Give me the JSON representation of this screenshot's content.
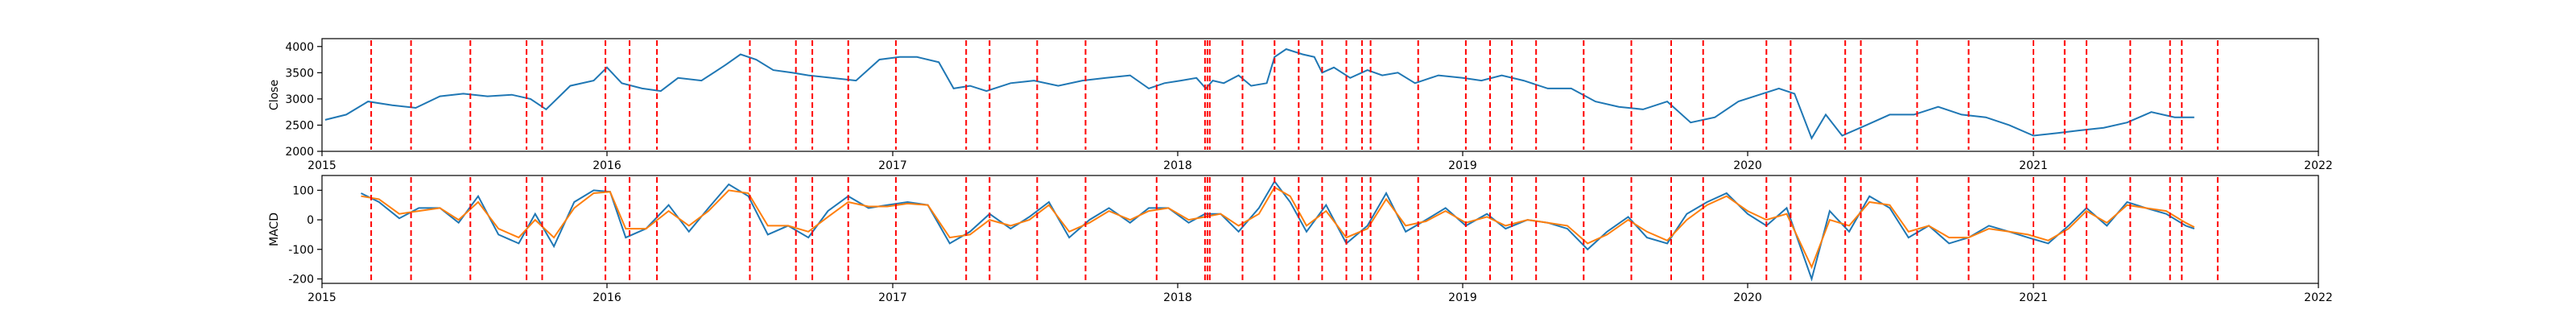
{
  "chart_data": [
    {
      "type": "line",
      "ylabel": "Close",
      "x_range": [
        "2015-01-01",
        "2022-01-01"
      ],
      "xticks": [
        "2015",
        "2016",
        "2017",
        "2018",
        "2019",
        "2020",
        "2021",
        "2022"
      ],
      "ylim": [
        2000,
        4150
      ],
      "yticks": [
        2000,
        2500,
        3000,
        3500,
        4000
      ],
      "grid": false,
      "series": [
        {
          "color": "#1f77b4",
          "dates": [
            "2015-01-05",
            "2015-02-01",
            "2015-03-01",
            "2015-04-01",
            "2015-05-01",
            "2015-06-01",
            "2015-07-01",
            "2015-08-01",
            "2015-09-01",
            "2015-09-25",
            "2015-10-15",
            "2015-11-15",
            "2015-12-15",
            "2016-01-01",
            "2016-01-20",
            "2016-02-15",
            "2016-03-10",
            "2016-04-01",
            "2016-05-01",
            "2016-06-01",
            "2016-06-20",
            "2016-07-10",
            "2016-08-01",
            "2016-08-25",
            "2016-09-15",
            "2016-10-15",
            "2016-11-15",
            "2016-12-15",
            "2017-01-10",
            "2017-02-01",
            "2017-03-01",
            "2017-03-20",
            "2017-04-10",
            "2017-05-01",
            "2017-06-01",
            "2017-07-01",
            "2017-08-01",
            "2017-09-01",
            "2017-10-01",
            "2017-11-01",
            "2017-11-25",
            "2017-12-15",
            "2018-01-05",
            "2018-01-25",
            "2018-02-06",
            "2018-02-15",
            "2018-03-01",
            "2018-03-20",
            "2018-04-05",
            "2018-04-25",
            "2018-05-05",
            "2018-05-20",
            "2018-06-10",
            "2018-06-25",
            "2018-07-05",
            "2018-07-20",
            "2018-08-10",
            "2018-09-01",
            "2018-09-20",
            "2018-10-10",
            "2018-11-01",
            "2018-12-01",
            "2019-01-01",
            "2019-01-25",
            "2019-02-20",
            "2019-03-20",
            "2019-04-20",
            "2019-05-20",
            "2019-06-20",
            "2019-07-20",
            "2019-08-20",
            "2019-09-20",
            "2019-10-20",
            "2019-11-20",
            "2019-12-20",
            "2020-01-20",
            "2020-02-10",
            "2020-03-01",
            "2020-03-23",
            "2020-04-10",
            "2020-05-01",
            "2020-06-01",
            "2020-07-01",
            "2020-08-01",
            "2020-09-01",
            "2020-10-01",
            "2020-11-01",
            "2020-12-01",
            "2021-01-01",
            "2021-02-01",
            "2021-03-01",
            "2021-04-01",
            "2021-05-01",
            "2021-06-01",
            "2021-07-01",
            "2021-07-26"
          ],
          "values": [
            2600,
            2700,
            2950,
            2880,
            2830,
            3050,
            3100,
            3050,
            3080,
            3000,
            2800,
            3250,
            3350,
            3600,
            3300,
            3200,
            3150,
            3400,
            3350,
            3650,
            3850,
            3750,
            3550,
            3500,
            3450,
            3400,
            3350,
            3750,
            3800,
            3800,
            3700,
            3200,
            3250,
            3150,
            3300,
            3350,
            3250,
            3350,
            3400,
            3450,
            3200,
            3300,
            3350,
            3400,
            3200,
            3350,
            3300,
            3450,
            3250,
            3300,
            3800,
            3950,
            3850,
            3800,
            3500,
            3600,
            3400,
            3550,
            3450,
            3500,
            3300,
            3450,
            3400,
            3350,
            3450,
            3350,
            3200,
            3200,
            2950,
            2850,
            2800,
            2950,
            2550,
            2650,
            2950,
            3100,
            3200,
            3100,
            2250,
            2700,
            2300,
            2500,
            2700,
            2700,
            2850,
            2700,
            2650,
            2500,
            2300,
            2350,
            2400,
            2450,
            2550,
            2750,
            2650,
            2650
          ]
        }
      ],
      "event_color": "#ff0000",
      "events": [
        "2015-03-05",
        "2015-04-25",
        "2015-07-10",
        "2015-09-20",
        "2015-10-10",
        "2015-12-30",
        "2016-01-30",
        "2016-03-05",
        "2016-07-02",
        "2016-08-30",
        "2016-09-20",
        "2016-11-05",
        "2017-01-05",
        "2017-04-05",
        "2017-05-05",
        "2017-07-05",
        "2017-09-05",
        "2017-12-05",
        "2018-02-05",
        "2018-02-08",
        "2018-02-11",
        "2018-03-25",
        "2018-05-05",
        "2018-06-05",
        "2018-07-05",
        "2018-08-05",
        "2018-08-25",
        "2018-09-05",
        "2018-11-05",
        "2019-01-05",
        "2019-02-05",
        "2019-03-05",
        "2019-04-05",
        "2019-06-05",
        "2019-08-05",
        "2019-09-25",
        "2019-11-05",
        "2020-01-25",
        "2020-02-25",
        "2020-05-05",
        "2020-05-25",
        "2020-08-05",
        "2020-10-10",
        "2021-01-01",
        "2021-02-10",
        "2021-03-10",
        "2021-05-05",
        "2021-06-25",
        "2021-07-10",
        "2021-08-25"
      ]
    },
    {
      "type": "line",
      "ylabel": "MACD",
      "x_range": [
        "2015-01-01",
        "2022-01-01"
      ],
      "xticks": [
        "2015",
        "2016",
        "2017",
        "2018",
        "2019",
        "2020",
        "2021",
        "2022"
      ],
      "ylim": [
        -215,
        150
      ],
      "yticks": [
        -200,
        -100,
        0,
        100
      ],
      "grid": false,
      "series": [
        {
          "color": "#1f77b4",
          "dates": [
            "2015-02-20",
            "2015-03-15",
            "2015-04-10",
            "2015-05-05",
            "2015-06-01",
            "2015-06-25",
            "2015-07-20",
            "2015-08-15",
            "2015-09-10",
            "2015-10-01",
            "2015-10-25",
            "2015-11-20",
            "2015-12-15",
            "2016-01-05",
            "2016-01-25",
            "2016-02-20",
            "2016-03-20",
            "2016-04-15",
            "2016-05-10",
            "2016-06-05",
            "2016-06-30",
            "2016-07-25",
            "2016-08-20",
            "2016-09-15",
            "2016-10-10",
            "2016-11-05",
            "2016-12-01",
            "2016-12-25",
            "2017-01-20",
            "2017-02-15",
            "2017-03-15",
            "2017-04-10",
            "2017-05-05",
            "2017-06-01",
            "2017-06-25",
            "2017-07-20",
            "2017-08-15",
            "2017-09-10",
            "2017-10-05",
            "2017-11-01",
            "2017-11-25",
            "2017-12-20",
            "2018-01-15",
            "2018-02-05",
            "2018-02-25",
            "2018-03-20",
            "2018-04-15",
            "2018-05-05",
            "2018-05-25",
            "2018-06-15",
            "2018-07-10",
            "2018-08-05",
            "2018-09-01",
            "2018-09-25",
            "2018-10-20",
            "2018-11-15",
            "2018-12-10",
            "2019-01-05",
            "2019-02-01",
            "2019-02-25",
            "2019-03-25",
            "2019-04-20",
            "2019-05-15",
            "2019-06-10",
            "2019-07-05",
            "2019-08-01",
            "2019-08-25",
            "2019-09-20",
            "2019-10-15",
            "2019-11-10",
            "2019-12-05",
            "2020-01-01",
            "2020-01-25",
            "2020-02-20",
            "2020-03-23",
            "2020-04-15",
            "2020-05-10",
            "2020-06-05",
            "2020-07-01",
            "2020-07-25",
            "2020-08-20",
            "2020-09-15",
            "2020-10-10",
            "2020-11-05",
            "2020-12-01",
            "2020-12-25",
            "2021-01-20",
            "2021-02-15",
            "2021-03-10",
            "2021-04-05",
            "2021-05-01",
            "2021-05-25",
            "2021-06-20",
            "2021-07-15",
            "2021-07-26"
          ],
          "values": [
            90,
            60,
            5,
            40,
            40,
            -10,
            80,
            -50,
            -80,
            20,
            -90,
            60,
            100,
            95,
            -60,
            -30,
            50,
            -40,
            40,
            120,
            80,
            -50,
            -20,
            -60,
            30,
            80,
            40,
            50,
            60,
            50,
            -80,
            -40,
            20,
            -30,
            10,
            60,
            -60,
            0,
            40,
            -10,
            40,
            40,
            -10,
            20,
            20,
            -40,
            40,
            130,
            60,
            -40,
            50,
            -80,
            -20,
            90,
            -40,
            0,
            40,
            -20,
            20,
            -30,
            0,
            -10,
            -30,
            -100,
            -40,
            10,
            -60,
            -80,
            20,
            60,
            90,
            20,
            -20,
            40,
            -200,
            30,
            -40,
            80,
            40,
            -60,
            -20,
            -80,
            -60,
            -20,
            -40,
            -60,
            -80,
            -20,
            40,
            -20,
            60,
            40,
            20,
            -20,
            -30
          ]
        },
        {
          "color": "#ff7f0e",
          "dates": [
            "2015-02-20",
            "2015-03-15",
            "2015-04-10",
            "2015-05-05",
            "2015-06-01",
            "2015-06-25",
            "2015-07-20",
            "2015-08-15",
            "2015-09-10",
            "2015-10-01",
            "2015-10-25",
            "2015-11-20",
            "2015-12-15",
            "2016-01-05",
            "2016-01-25",
            "2016-02-20",
            "2016-03-20",
            "2016-04-15",
            "2016-05-10",
            "2016-06-05",
            "2016-06-30",
            "2016-07-25",
            "2016-08-20",
            "2016-09-15",
            "2016-10-10",
            "2016-11-05",
            "2016-12-01",
            "2016-12-25",
            "2017-01-20",
            "2017-02-15",
            "2017-03-15",
            "2017-04-10",
            "2017-05-05",
            "2017-06-01",
            "2017-06-25",
            "2017-07-20",
            "2017-08-15",
            "2017-09-10",
            "2017-10-05",
            "2017-11-01",
            "2017-11-25",
            "2017-12-20",
            "2018-01-15",
            "2018-02-05",
            "2018-02-25",
            "2018-03-20",
            "2018-04-15",
            "2018-05-05",
            "2018-05-25",
            "2018-06-15",
            "2018-07-10",
            "2018-08-05",
            "2018-09-01",
            "2018-09-25",
            "2018-10-20",
            "2018-11-15",
            "2018-12-10",
            "2019-01-05",
            "2019-02-01",
            "2019-02-25",
            "2019-03-25",
            "2019-04-20",
            "2019-05-15",
            "2019-06-10",
            "2019-07-05",
            "2019-08-01",
            "2019-08-25",
            "2019-09-20",
            "2019-10-15",
            "2019-11-10",
            "2019-12-05",
            "2020-01-01",
            "2020-01-25",
            "2020-02-20",
            "2020-03-23",
            "2020-04-15",
            "2020-05-10",
            "2020-06-05",
            "2020-07-01",
            "2020-07-25",
            "2020-08-20",
            "2020-09-15",
            "2020-10-10",
            "2020-11-05",
            "2020-12-01",
            "2020-12-25",
            "2021-01-20",
            "2021-02-15",
            "2021-03-10",
            "2021-04-05",
            "2021-05-01",
            "2021-05-25",
            "2021-06-20",
            "2021-07-15",
            "2021-07-26"
          ],
          "values": [
            80,
            70,
            20,
            30,
            40,
            0,
            60,
            -30,
            -60,
            0,
            -60,
            40,
            90,
            95,
            -30,
            -30,
            30,
            -20,
            30,
            100,
            90,
            -20,
            -20,
            -40,
            10,
            60,
            45,
            45,
            55,
            50,
            -60,
            -50,
            0,
            -20,
            0,
            50,
            -40,
            -10,
            30,
            0,
            30,
            40,
            0,
            10,
            20,
            -20,
            20,
            110,
            80,
            -20,
            30,
            -60,
            -30,
            70,
            -20,
            -5,
            30,
            -10,
            10,
            -20,
            0,
            -10,
            -20,
            -80,
            -50,
            0,
            -40,
            -70,
            0,
            50,
            80,
            30,
            0,
            20,
            -160,
            0,
            -20,
            60,
            50,
            -40,
            -20,
            -60,
            -60,
            -30,
            -40,
            -50,
            -70,
            -30,
            30,
            -10,
            50,
            40,
            30,
            -10,
            -25
          ]
        }
      ],
      "event_color": "#ff0000",
      "events": [
        "2015-03-05",
        "2015-04-25",
        "2015-07-10",
        "2015-09-20",
        "2015-10-10",
        "2015-12-30",
        "2016-01-30",
        "2016-03-05",
        "2016-07-02",
        "2016-08-30",
        "2016-09-20",
        "2016-11-05",
        "2017-01-05",
        "2017-04-05",
        "2017-05-05",
        "2017-07-05",
        "2017-09-05",
        "2017-12-05",
        "2018-02-05",
        "2018-02-08",
        "2018-02-11",
        "2018-03-25",
        "2018-05-05",
        "2018-06-05",
        "2018-07-05",
        "2018-08-05",
        "2018-08-25",
        "2018-09-05",
        "2018-11-05",
        "2019-01-05",
        "2019-02-05",
        "2019-03-05",
        "2019-04-05",
        "2019-06-05",
        "2019-08-05",
        "2019-09-25",
        "2019-11-05",
        "2020-01-25",
        "2020-02-25",
        "2020-05-05",
        "2020-05-25",
        "2020-08-05",
        "2020-10-10",
        "2021-01-01",
        "2021-02-10",
        "2021-03-10",
        "2021-05-05",
        "2021-06-25",
        "2021-07-10",
        "2021-08-25"
      ]
    }
  ]
}
